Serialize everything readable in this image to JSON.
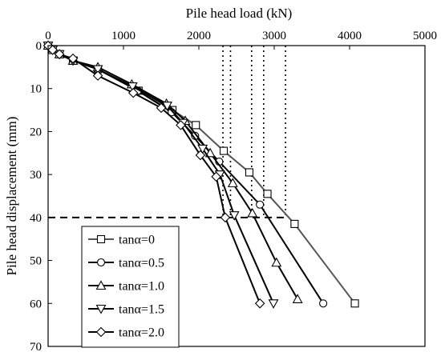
{
  "chart_data": {
    "type": "line",
    "xlabel": "Pile head load (kN)",
    "ylabel": "Pile head displacement (mm)",
    "x_axis_position": "top",
    "y_axis_inverted": true,
    "xlim": [
      0,
      5000
    ],
    "ylim": [
      0,
      70
    ],
    "xticks": [
      0,
      1000,
      2000,
      3000,
      4000,
      5000
    ],
    "yticks": [
      0,
      10,
      20,
      30,
      40,
      50,
      60,
      70
    ],
    "grid": false,
    "legend_position": "bottom-left",
    "reference_lines": {
      "horizontal_dashed_y": 40,
      "vertical_dotted_x": [
        2320,
        2420,
        2700,
        2860,
        3150
      ]
    },
    "series": [
      {
        "name": "tanα=0",
        "marker": "square",
        "color": "#555555",
        "x": [
          0,
          60,
          150,
          330,
          660,
          1200,
          1650,
          1960,
          2330,
          2670,
          2910,
          3270,
          4070
        ],
        "y": [
          0,
          1,
          2,
          3.5,
          5.5,
          10.5,
          15,
          18.5,
          24.5,
          29.5,
          34.5,
          41.5,
          60
        ]
      },
      {
        "name": "tanα=0.5",
        "marker": "circle",
        "color": "#000000",
        "x": [
          0,
          60,
          150,
          330,
          660,
          1190,
          1640,
          1950,
          2270,
          2810,
          3650
        ],
        "y": [
          0,
          1,
          2,
          3.5,
          5.5,
          10.5,
          15.5,
          21,
          27,
          37,
          60
        ]
      },
      {
        "name": "tanα=1.0",
        "marker": "triangle-up",
        "color": "#000000",
        "x": [
          0,
          60,
          150,
          330,
          660,
          1110,
          1570,
          1820,
          2150,
          2450,
          2710,
          3030,
          3310
        ],
        "y": [
          0,
          1,
          2,
          3.5,
          5,
          9,
          13.5,
          17.5,
          25,
          32,
          39,
          50.5,
          59
        ]
      },
      {
        "name": "tanα=1.5",
        "marker": "triangle-down",
        "color": "#000000",
        "x": [
          0,
          60,
          150,
          330,
          660,
          1120,
          1580,
          1790,
          2050,
          2280,
          2470,
          2990
        ],
        "y": [
          0,
          1,
          2,
          3.5,
          5.5,
          9.5,
          14,
          18,
          24,
          30,
          39.5,
          60
        ]
      },
      {
        "name": "tanα=2.0",
        "marker": "diamond",
        "color": "#000000",
        "x": [
          0,
          60,
          150,
          330,
          660,
          1130,
          1500,
          1760,
          2020,
          2230,
          2350,
          2810
        ],
        "y": [
          0,
          1,
          2,
          3,
          7,
          11,
          14.5,
          18.5,
          25.5,
          30.5,
          40,
          60
        ]
      }
    ]
  }
}
